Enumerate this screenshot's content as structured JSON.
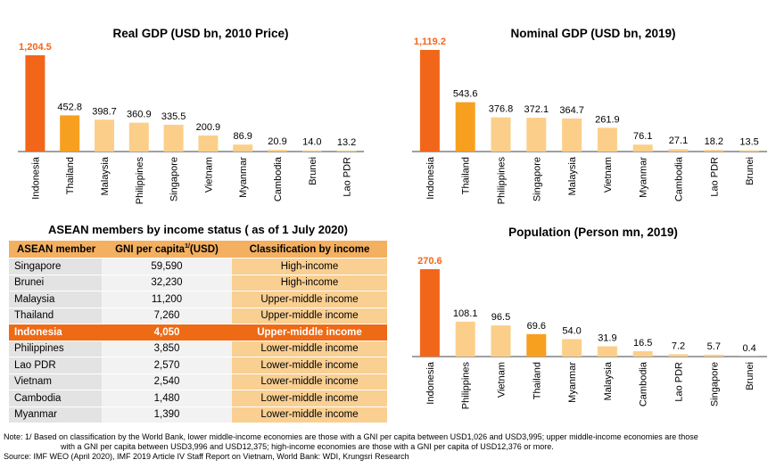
{
  "colors": {
    "highlight": "#f2661a",
    "thailand": "#f7a020",
    "other": "#fbcf8a",
    "axis": "#404040"
  },
  "chart_data": [
    {
      "type": "bar",
      "title": "Real GDP (USD bn, 2010 Price)",
      "categories": [
        "Indonesia",
        "Thailand",
        "Malaysia",
        "Philippines",
        "Singapore",
        "Vietnam",
        "Myanmar",
        "Cambodia",
        "Brunei",
        "Lao PDR"
      ],
      "values": [
        1204.5,
        452.8,
        398.7,
        360.9,
        335.5,
        200.9,
        86.9,
        20.9,
        14.0,
        13.2
      ],
      "value_labels": [
        "1,204.5",
        "452.8",
        "398.7",
        "360.9",
        "335.5",
        "200.9",
        "86.9",
        "20.9",
        "14.0",
        "13.2"
      ],
      "ylim": [
        0,
        1204.5
      ]
    },
    {
      "type": "bar",
      "title": "Nominal GDP (USD bn, 2019)",
      "categories": [
        "Indonesia",
        "Thailand",
        "Philippines",
        "Singapore",
        "Malaysia",
        "Vietnam",
        "Myanmar",
        "Cambodia",
        "Lao PDR",
        "Brunei"
      ],
      "values": [
        1119.2,
        543.6,
        376.8,
        372.1,
        364.7,
        261.9,
        76.1,
        27.1,
        18.2,
        13.5
      ],
      "value_labels": [
        "1,119.2",
        "543.6",
        "376.8",
        "372.1",
        "364.7",
        "261.9",
        "76.1",
        "27.1",
        "18.2",
        "13.5"
      ],
      "ylim": [
        0,
        1119.2
      ]
    },
    {
      "type": "bar",
      "title": "Population (Person mn, 2019)",
      "categories": [
        "Indonesia",
        "Philippines",
        "Vietnam",
        "Thailand",
        "Myanmar",
        "Malaysia",
        "Cambodia",
        "Lao PDR",
        "Singapore",
        "Brunei"
      ],
      "values": [
        270.6,
        108.1,
        96.5,
        69.6,
        54.0,
        31.9,
        16.5,
        7.2,
        5.7,
        0.4
      ],
      "value_labels": [
        "270.6",
        "108.1",
        "96.5",
        "69.6",
        "54.0",
        "31.9",
        "16.5",
        "7.2",
        "5.7",
        "0.4"
      ],
      "ylim": [
        0,
        270.6
      ]
    },
    {
      "type": "table",
      "title": "ASEAN members by income status ( as of 1 July 2020)",
      "columns": [
        "ASEAN member",
        "GNI per capita",
        "1/",
        "(USD)",
        "Classification by income"
      ],
      "rows": [
        [
          "Singapore",
          "59,590",
          "High-income"
        ],
        [
          "Brunei",
          "32,230",
          "High-income"
        ],
        [
          "Malaysia",
          "11,200",
          "Upper-middle income"
        ],
        [
          "Thailand",
          "7,260",
          "Upper-middle income"
        ],
        [
          "Indonesia",
          "4,050",
          "Upper-middle income"
        ],
        [
          "Philippines",
          "3,850",
          "Lower-middle income"
        ],
        [
          "Lao PDR",
          "2,570",
          "Lower-middle income"
        ],
        [
          "Vietnam",
          "2,540",
          "Lower-middle income"
        ],
        [
          "Cambodia",
          "1,480",
          "Lower-middle income"
        ],
        [
          "Myanmar",
          "1,390",
          "Lower-middle income"
        ]
      ]
    }
  ],
  "notes": {
    "line1": "Note:   1/ Based on classification by the World Bank, lower middle-income economies are those with a GNI per capita between USD1,026 and USD3,995; upper middle-income economies are those",
    "line2": "with a GNI per capita between USD3,996 and USD12,375; high-income economies are those with a GNI per capita of USD12,376 or more.",
    "source": "Source: IMF WEO (April 2020),  IMF 2019 Article IV Staff Report on Vietnam, World Bank: WDI, Krungsri Research"
  }
}
